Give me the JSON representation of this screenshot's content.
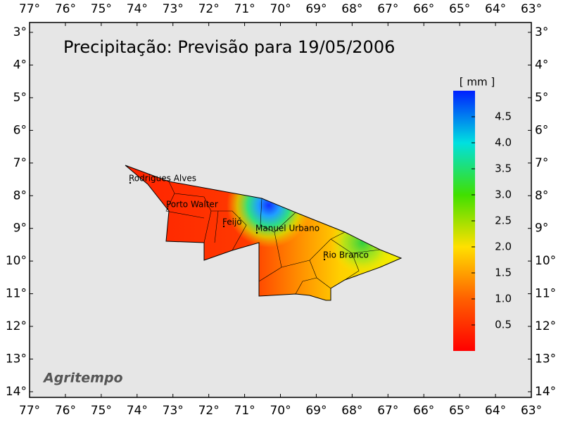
{
  "map": {
    "title": "Precipitação: Previsão para 19/05/2006",
    "credit": "Agritempo",
    "lon_ticks": [
      {
        "value": 77,
        "label": "77°"
      },
      {
        "value": 76,
        "label": "76°"
      },
      {
        "value": 75,
        "label": "75°"
      },
      {
        "value": 74,
        "label": "74°"
      },
      {
        "value": 73,
        "label": "73°"
      },
      {
        "value": 72,
        "label": "72°"
      },
      {
        "value": 71,
        "label": "71°"
      },
      {
        "value": 70,
        "label": "70°"
      },
      {
        "value": 69,
        "label": "69°"
      },
      {
        "value": 68,
        "label": "68°"
      },
      {
        "value": 67,
        "label": "67°"
      },
      {
        "value": 66,
        "label": "66°"
      },
      {
        "value": 65,
        "label": "65°"
      },
      {
        "value": 64,
        "label": "64°"
      },
      {
        "value": 63,
        "label": "63°"
      }
    ],
    "lat_ticks": [
      {
        "value": 3,
        "label": "3°"
      },
      {
        "value": 4,
        "label": "4°"
      },
      {
        "value": 5,
        "label": "5°"
      },
      {
        "value": 6,
        "label": "6°"
      },
      {
        "value": 7,
        "label": "7°"
      },
      {
        "value": 8,
        "label": "8°"
      },
      {
        "value": 9,
        "label": "9°"
      },
      {
        "value": 10,
        "label": "10°"
      },
      {
        "value": 11,
        "label": "11°"
      },
      {
        "value": 12,
        "label": "12°"
      },
      {
        "value": 13,
        "label": "13°"
      },
      {
        "value": 14,
        "label": "14°"
      }
    ],
    "colorbar": {
      "unit": "[ mm ]",
      "range": [
        0,
        5
      ],
      "ticks": [
        0.5,
        {
          "value": 1,
          "label": "1.0"
        },
        1.5,
        {
          "value": 2,
          "label": "2.0"
        },
        2.5,
        {
          "value": 3,
          "label": "3.0"
        },
        3.5,
        {
          "value": 4,
          "label": "4.0"
        },
        4.5
      ]
    },
    "cities": [
      "Rodrigues Alves",
      "Porto Walter",
      "Feijó",
      "Manuel Urbano",
      "Rio Branco"
    ]
  }
}
